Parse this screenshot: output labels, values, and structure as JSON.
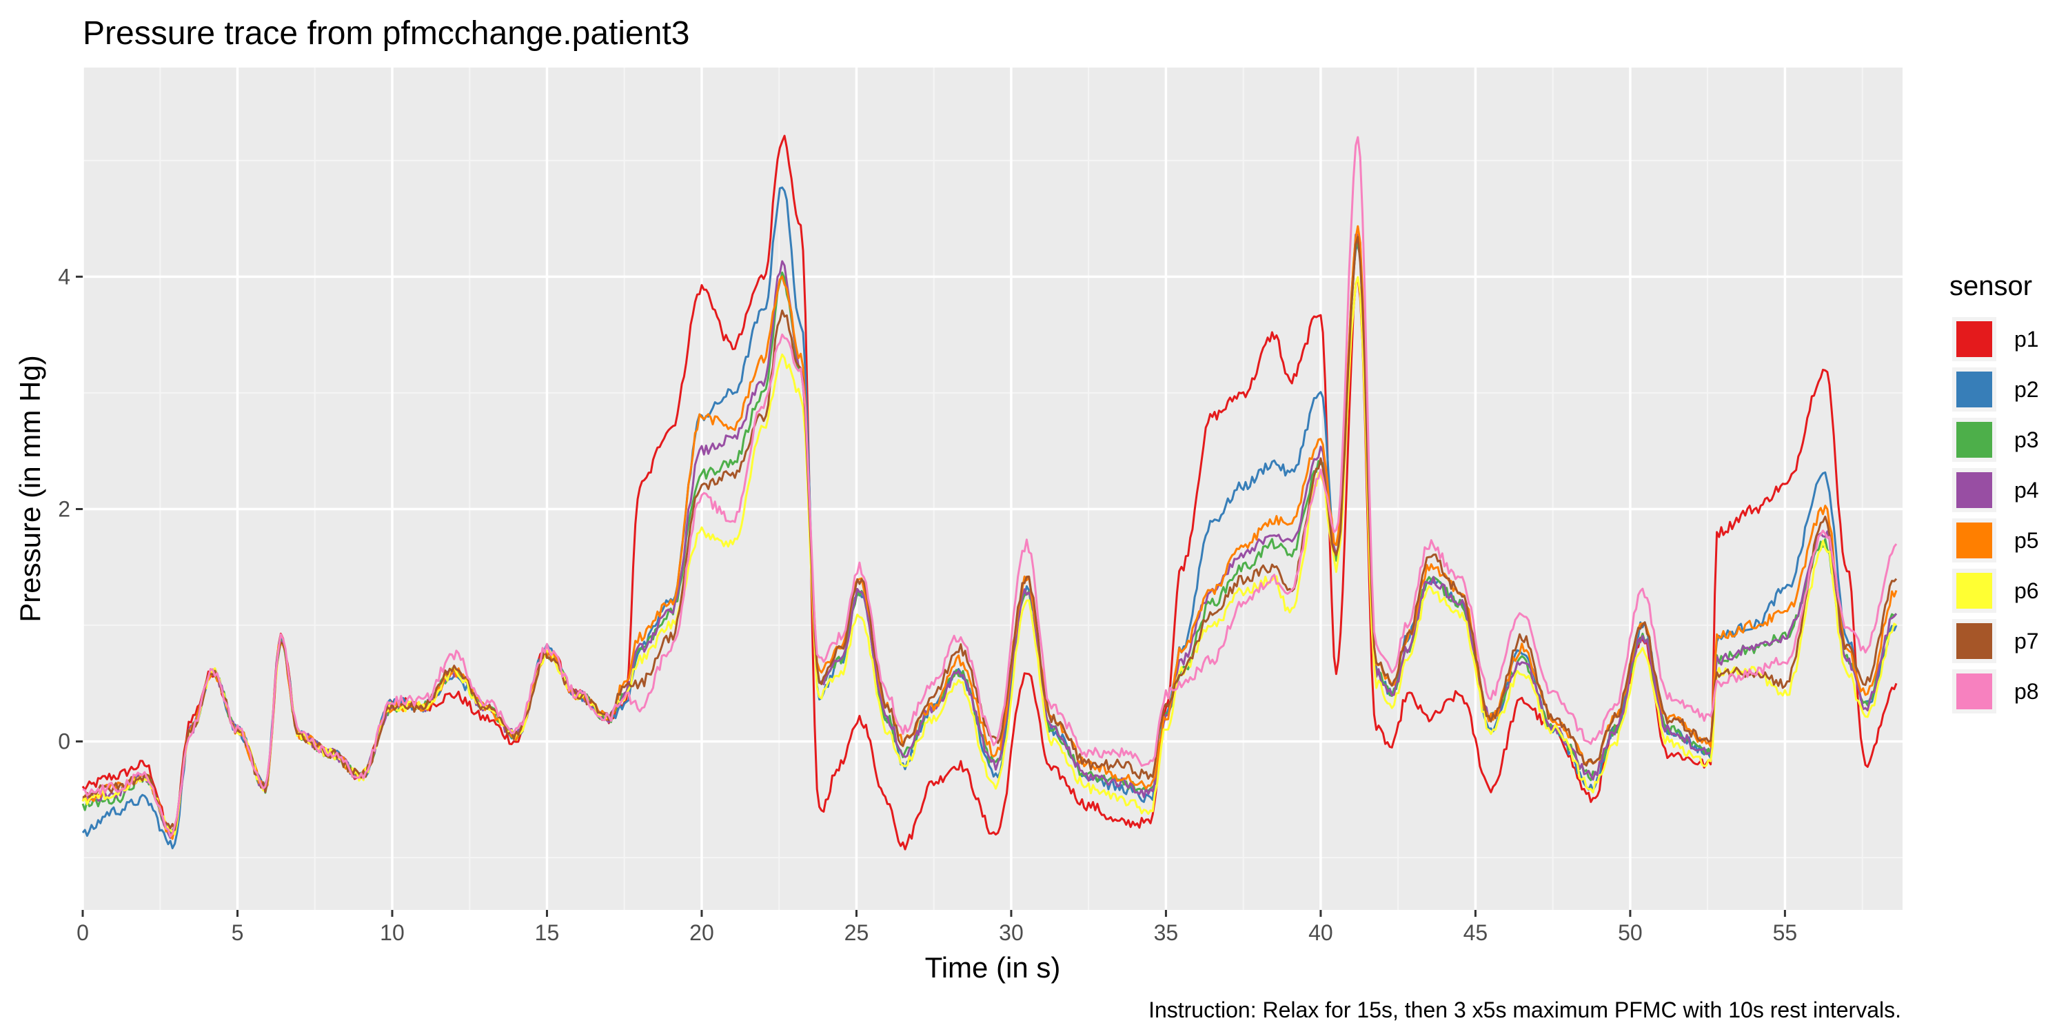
{
  "chart_data": {
    "type": "line",
    "title": "Pressure trace from pfmcchange.patient3",
    "xlabel": "Time (in s)",
    "ylabel": "Pressure (in mm Hg)",
    "caption": "Instruction: Relax for 15s, then 3 x5s maximum PFMC with 10s rest intervals.",
    "xlim": [
      0,
      58.8
    ],
    "ylim": [
      -1.45,
      5.8
    ],
    "x_ticks": [
      0,
      5,
      10,
      15,
      20,
      25,
      30,
      35,
      40,
      45,
      50,
      55
    ],
    "y_ticks": [
      0,
      2,
      4
    ],
    "grid": true,
    "legend_title": "sensor",
    "legend_position": "right",
    "x": [
      0,
      1,
      2,
      2.9,
      3.5,
      4.2,
      5,
      5.9,
      6.4,
      7,
      8,
      9,
      10,
      11,
      12,
      13,
      14,
      15,
      16,
      17,
      17.5,
      18,
      19,
      20,
      21,
      22,
      22.6,
      23.2,
      23.8,
      24.5,
      25.1,
      26,
      26.5,
      27.5,
      28.3,
      29.5,
      30.5,
      31.3,
      32.5,
      33.5,
      34.5,
      35,
      35.5,
      36.5,
      37.5,
      38.5,
      39,
      40,
      40.5,
      41.2,
      41.8,
      42.3,
      42.8,
      43.5,
      44.5,
      45.5,
      46.5,
      47.5,
      48.8,
      49.5,
      50.4,
      51.2,
      52.6,
      52.8,
      54,
      55,
      56.3,
      57,
      57.6,
      58.6
    ],
    "series": [
      {
        "name": "p1",
        "color": "#E41A1C",
        "values": [
          -0.4,
          -0.3,
          -0.2,
          -0.8,
          0.2,
          0.6,
          0.1,
          -0.4,
          0.9,
          0.05,
          -0.1,
          -0.3,
          0.35,
          0.3,
          0.4,
          0.2,
          0.0,
          0.8,
          0.4,
          0.2,
          0.3,
          2.2,
          2.7,
          3.9,
          3.4,
          4.0,
          5.2,
          4.4,
          -0.6,
          -0.2,
          0.2,
          -0.5,
          -0.9,
          -0.35,
          -0.2,
          -0.8,
          0.6,
          -0.25,
          -0.55,
          -0.7,
          -0.7,
          0.3,
          1.5,
          2.8,
          3.0,
          3.5,
          3.1,
          3.7,
          0.6,
          4.0,
          0.1,
          -0.05,
          0.4,
          0.2,
          0.4,
          -0.4,
          0.35,
          0.1,
          -0.5,
          0.1,
          0.9,
          -0.1,
          -0.2,
          1.8,
          2.0,
          2.2,
          3.2,
          1.5,
          -0.2,
          0.5
        ]
      },
      {
        "name": "p2",
        "color": "#377EB8",
        "values": [
          -0.8,
          -0.6,
          -0.5,
          -0.9,
          0.1,
          0.6,
          0.1,
          -0.4,
          0.9,
          0.05,
          -0.1,
          -0.3,
          0.35,
          0.3,
          0.55,
          0.3,
          0.05,
          0.8,
          0.4,
          0.2,
          0.3,
          0.8,
          1.2,
          2.8,
          3.0,
          3.7,
          4.8,
          3.6,
          0.4,
          0.7,
          1.3,
          0.2,
          -0.2,
          0.3,
          0.6,
          -0.3,
          1.3,
          0.1,
          -0.3,
          -0.4,
          -0.5,
          0.2,
          0.8,
          1.9,
          2.2,
          2.4,
          2.3,
          3.0,
          1.6,
          4.3,
          0.6,
          0.4,
          0.9,
          1.4,
          1.2,
          0.1,
          0.8,
          0.1,
          -0.4,
          0.1,
          1.0,
          0.1,
          -0.1,
          0.9,
          1.0,
          1.3,
          2.3,
          0.9,
          0.3,
          1.0
        ]
      },
      {
        "name": "p3",
        "color": "#4DAF4A",
        "values": [
          -0.55,
          -0.5,
          -0.3,
          -0.8,
          0.1,
          0.6,
          0.1,
          -0.4,
          0.85,
          0.05,
          -0.1,
          -0.3,
          0.3,
          0.3,
          0.6,
          0.3,
          0.05,
          0.75,
          0.4,
          0.2,
          0.4,
          0.8,
          1.1,
          2.3,
          2.4,
          3.0,
          4.0,
          3.2,
          0.5,
          0.7,
          1.3,
          0.2,
          -0.1,
          0.3,
          0.6,
          -0.2,
          1.3,
          0.1,
          -0.3,
          -0.35,
          -0.45,
          0.2,
          0.6,
          1.2,
          1.5,
          1.7,
          1.6,
          2.4,
          1.6,
          4.3,
          0.6,
          0.4,
          0.8,
          1.4,
          1.2,
          0.2,
          0.7,
          0.1,
          -0.3,
          0.1,
          0.9,
          0.1,
          -0.1,
          0.7,
          0.8,
          0.9,
          1.7,
          0.7,
          0.3,
          1.1
        ]
      },
      {
        "name": "p4",
        "color": "#984EA3",
        "values": [
          -0.5,
          -0.45,
          -0.3,
          -0.8,
          0.1,
          0.6,
          0.1,
          -0.4,
          0.85,
          0.05,
          -0.1,
          -0.3,
          0.3,
          0.3,
          0.6,
          0.3,
          0.05,
          0.75,
          0.4,
          0.2,
          0.4,
          0.8,
          1.1,
          2.5,
          2.6,
          3.1,
          4.1,
          3.2,
          0.5,
          0.7,
          1.3,
          0.2,
          -0.1,
          0.3,
          0.6,
          -0.2,
          1.3,
          0.1,
          -0.3,
          -0.35,
          -0.45,
          0.2,
          0.7,
          1.3,
          1.6,
          1.8,
          1.7,
          2.5,
          1.6,
          4.4,
          0.6,
          0.4,
          0.8,
          1.4,
          1.2,
          0.2,
          0.7,
          0.1,
          -0.3,
          0.1,
          0.9,
          0.1,
          -0.1,
          0.7,
          0.8,
          0.9,
          1.8,
          0.7,
          0.3,
          1.1
        ]
      },
      {
        "name": "p5",
        "color": "#FF7F00",
        "values": [
          -0.5,
          -0.4,
          -0.3,
          -0.8,
          0.1,
          0.6,
          0.1,
          -0.4,
          0.85,
          0.05,
          -0.1,
          -0.3,
          0.3,
          0.3,
          0.6,
          0.3,
          0.05,
          0.75,
          0.4,
          0.2,
          0.5,
          0.9,
          1.2,
          2.8,
          2.7,
          3.3,
          4.0,
          3.3,
          0.6,
          0.8,
          1.4,
          0.3,
          0.0,
          0.3,
          0.7,
          -0.1,
          1.4,
          0.2,
          -0.2,
          -0.3,
          -0.4,
          0.2,
          0.8,
          1.3,
          1.7,
          1.9,
          1.9,
          2.6,
          1.7,
          4.4,
          0.7,
          0.5,
          0.9,
          1.5,
          1.3,
          0.2,
          0.8,
          0.2,
          -0.2,
          0.2,
          1.0,
          0.2,
          0.0,
          0.9,
          1.0,
          1.1,
          2.0,
          0.8,
          0.4,
          1.3
        ]
      },
      {
        "name": "p6",
        "color": "#FFFF33",
        "values": [
          -0.5,
          -0.45,
          -0.3,
          -0.8,
          0.1,
          0.6,
          0.1,
          -0.4,
          0.85,
          0.05,
          -0.1,
          -0.3,
          0.3,
          0.3,
          0.6,
          0.3,
          0.05,
          0.75,
          0.4,
          0.2,
          0.4,
          0.7,
          1.0,
          1.8,
          1.7,
          2.7,
          3.3,
          3.0,
          0.4,
          0.6,
          1.1,
          0.1,
          -0.2,
          0.2,
          0.5,
          -0.4,
          1.2,
          0.0,
          -0.4,
          -0.5,
          -0.6,
          0.1,
          0.6,
          1.0,
          1.3,
          1.4,
          1.1,
          2.3,
          1.5,
          4.0,
          0.5,
          0.3,
          0.7,
          1.3,
          1.1,
          0.1,
          0.6,
          0.1,
          -0.4,
          0.0,
          0.8,
          0.0,
          -0.2,
          0.6,
          0.6,
          0.4,
          1.7,
          0.6,
          0.2,
          1.0
        ]
      },
      {
        "name": "p7",
        "color": "#A65628",
        "values": [
          -0.45,
          -0.4,
          -0.3,
          -0.75,
          0.1,
          0.6,
          0.1,
          -0.4,
          0.85,
          0.05,
          -0.1,
          -0.3,
          0.3,
          0.3,
          0.65,
          0.3,
          0.05,
          0.75,
          0.4,
          0.2,
          0.5,
          0.5,
          0.9,
          2.2,
          2.3,
          2.8,
          3.7,
          3.2,
          0.5,
          0.8,
          1.4,
          0.3,
          0.0,
          0.4,
          0.8,
          0.0,
          1.4,
          0.2,
          -0.2,
          -0.2,
          -0.3,
          0.3,
          0.6,
          1.1,
          1.4,
          1.5,
          1.3,
          2.4,
          1.6,
          4.3,
          0.7,
          0.5,
          0.9,
          1.6,
          1.3,
          0.2,
          0.9,
          0.2,
          -0.2,
          0.2,
          1.0,
          0.2,
          0.0,
          0.6,
          0.6,
          0.5,
          1.9,
          0.8,
          0.5,
          1.4
        ]
      },
      {
        "name": "p8",
        "color": "#F781BF",
        "values": [
          -0.45,
          -0.4,
          -0.3,
          -0.8,
          0.1,
          0.6,
          0.1,
          -0.4,
          0.9,
          0.05,
          -0.1,
          -0.3,
          0.35,
          0.35,
          0.75,
          0.35,
          0.1,
          0.8,
          0.4,
          0.2,
          0.4,
          0.3,
          0.8,
          2.1,
          1.9,
          2.9,
          3.5,
          3.2,
          0.7,
          0.9,
          1.5,
          0.4,
          0.1,
          0.5,
          0.9,
          0.0,
          1.7,
          0.3,
          -0.1,
          -0.1,
          -0.2,
          0.4,
          0.5,
          0.7,
          1.2,
          1.4,
          1.3,
          2.3,
          1.8,
          5.2,
          0.8,
          0.6,
          1.0,
          1.7,
          1.4,
          0.4,
          1.1,
          0.4,
          0.0,
          0.3,
          1.3,
          0.4,
          0.2,
          0.5,
          0.6,
          0.7,
          1.8,
          1.0,
          0.8,
          1.7
        ]
      }
    ]
  }
}
